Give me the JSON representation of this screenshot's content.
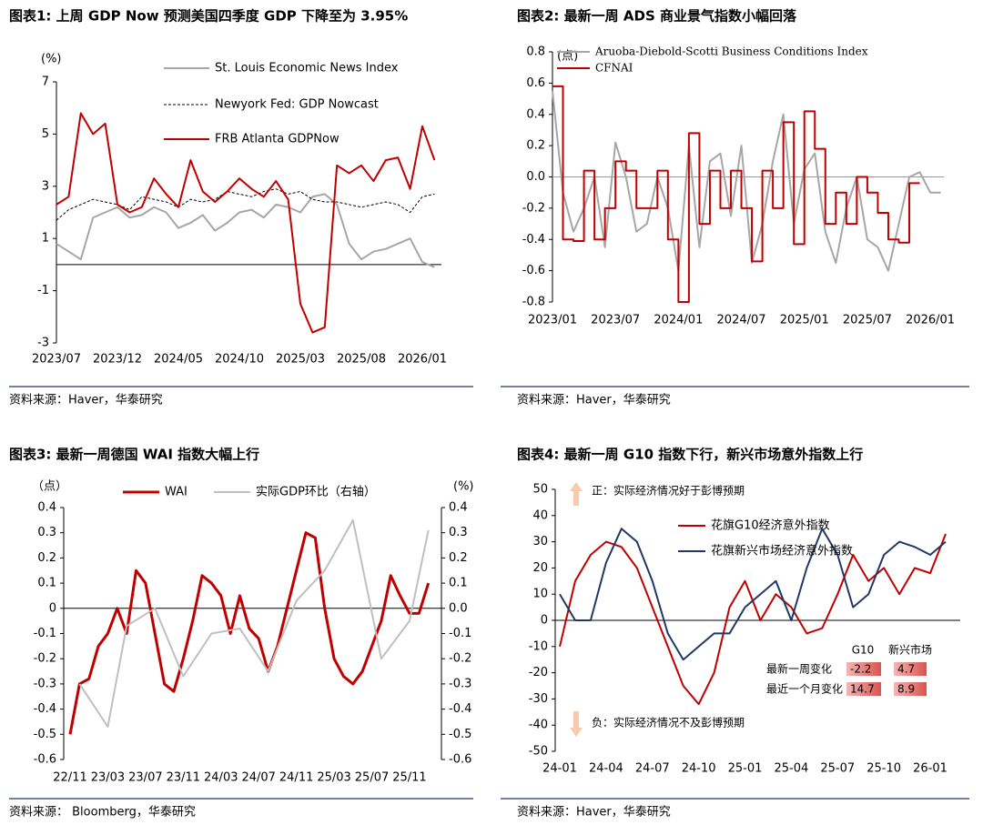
{
  "chart_data": [
    {
      "type": "line",
      "title": "图表1:  上周 GDP Now 预测美国四季度 GDP 下降至为 3.95%",
      "unit": "(%)",
      "source": "资料来源：Haver，华泰研究",
      "categories": [
        "2023/07",
        null,
        null,
        null,
        null,
        "2023/12",
        null,
        null,
        null,
        null,
        "2024/05",
        null,
        null,
        null,
        null,
        "2024/10",
        null,
        null,
        null,
        null,
        "2025/03",
        null,
        null,
        null,
        null,
        "2025/08",
        null,
        null,
        null,
        null,
        "2026/01",
        null
      ],
      "ylim": [
        -3,
        7
      ],
      "yticks": [
        -3,
        -1,
        1,
        3,
        5,
        7
      ],
      "series": [
        {
          "name": "St. Louis Economic News Index",
          "color": "#a6a6a6",
          "values": [
            0.8,
            0.5,
            0.2,
            1.8,
            2.0,
            2.2,
            1.8,
            1.9,
            2.2,
            2.0,
            1.4,
            1.6,
            1.9,
            1.3,
            1.6,
            2.0,
            2.1,
            1.8,
            2.3,
            2.2,
            2.0,
            2.6,
            2.7,
            2.3,
            0.8,
            0.2,
            0.5,
            0.6,
            0.8,
            1.0,
            0.1,
            -0.1
          ]
        },
        {
          "name": "Newyork Fed: GDP Nowcast",
          "color": "#000000",
          "dash": true,
          "values": [
            1.7,
            2.1,
            2.3,
            2.5,
            2.4,
            2.3,
            2.1,
            2.6,
            2.5,
            2.4,
            2.2,
            2.5,
            2.4,
            2.5,
            2.8,
            2.7,
            2.6,
            2.8,
            2.9,
            2.7,
            2.8,
            2.5,
            2.4,
            2.4,
            2.3,
            2.2,
            2.3,
            2.4,
            2.3,
            2.0,
            2.6,
            2.7
          ]
        },
        {
          "name": "FRB Atlanta GDPNow",
          "color": "#c00000",
          "values": [
            2.3,
            2.6,
            5.8,
            5.0,
            5.4,
            2.3,
            2.0,
            2.2,
            3.3,
            2.7,
            2.2,
            4.0,
            2.8,
            2.4,
            2.8,
            3.3,
            2.9,
            2.6,
            3.2,
            2.5,
            -1.5,
            -2.6,
            -2.4,
            3.8,
            3.5,
            3.8,
            3.2,
            4.0,
            4.1,
            2.9,
            5.3,
            4.0
          ]
        }
      ]
    },
    {
      "type": "line",
      "title": "图表2:  最新一周 ADS 商业景气指数小幅回落",
      "unit": "(点)",
      "source": "资料来源：Haver，华泰研究",
      "categories": [
        "2023/01",
        null,
        null,
        null,
        null,
        null,
        "2023/07",
        null,
        null,
        null,
        null,
        null,
        "2024/01",
        null,
        null,
        null,
        null,
        null,
        "2024/07",
        null,
        null,
        null,
        null,
        null,
        "2025/01",
        null,
        null,
        null,
        null,
        null,
        "2025/07",
        null,
        null,
        null,
        null,
        null,
        "2026/01",
        null
      ],
      "ylim": [
        -0.8,
        0.8
      ],
      "yticks": [
        -0.8,
        -0.6,
        -0.4,
        -0.2,
        {
          "value": 0,
          "label": "0.0"
        },
        0.2,
        0.4,
        0.6,
        0.8
      ],
      "series": [
        {
          "name": "Aruoba-Diebold-Scotti Business Conditions Index",
          "color": "#a6a6a6",
          "values": [
            0.55,
            -0.1,
            -0.35,
            -0.2,
            0.0,
            -0.45,
            0.22,
            0.0,
            -0.35,
            -0.3,
            0.0,
            -0.2,
            -0.6,
            0.2,
            -0.45,
            0.1,
            0.15,
            -0.25,
            0.2,
            -0.55,
            -0.3,
            0.1,
            0.4,
            -0.3,
            0.05,
            0.15,
            -0.35,
            -0.55,
            -0.2,
            0.0,
            -0.4,
            -0.45,
            -0.6,
            -0.3,
            0.0,
            0.03,
            -0.1,
            -0.1
          ]
        },
        {
          "name": "CFNAI",
          "color": "#c00000",
          "step": true,
          "values": [
            0.58,
            -0.4,
            -0.41,
            0.04,
            -0.4,
            -0.2,
            0.1,
            0.04,
            -0.2,
            -0.2,
            0.04,
            -0.4,
            -0.8,
            0.28,
            -0.3,
            0.04,
            -0.2,
            0.04,
            -0.2,
            -0.54,
            0.04,
            -0.2,
            0.35,
            -0.43,
            0.42,
            0.18,
            -0.3,
            -0.1,
            -0.3,
            0.0,
            -0.1,
            -0.23,
            -0.4,
            -0.42,
            -0.04,
            -0.04,
            null,
            null
          ]
        }
      ]
    },
    {
      "type": "line",
      "title": "图表3:  最新一周德国 WAI 指数大幅上行",
      "unit": "（点）",
      "unit2": "(%)",
      "source": "资料来源：  Bloomberg，华泰研究",
      "categories": [
        "22/11",
        null,
        null,
        null,
        "23/03",
        null,
        null,
        null,
        "23/07",
        null,
        null,
        null,
        "23/11",
        null,
        null,
        null,
        "24/03",
        null,
        null,
        null,
        "24/07",
        null,
        null,
        null,
        "24/11",
        null,
        null,
        null,
        "25/03",
        null,
        null,
        null,
        "25/07",
        null,
        null,
        null,
        "25/11",
        null,
        null
      ],
      "ylim": [
        -0.6,
        0.4
      ],
      "yticks": [
        -0.6,
        -0.5,
        -0.4,
        -0.3,
        -0.2,
        -0.1,
        0,
        0.1,
        0.2,
        0.3,
        0.4
      ],
      "y2lim": [
        -0.6,
        0.4
      ],
      "y2ticks": [
        -0.6,
        -0.5,
        -0.4,
        -0.3,
        -0.2,
        -0.1,
        {
          "value": 0,
          "label": "0.0"
        },
        0.1,
        0.2,
        0.3,
        0.4
      ],
      "series": [
        {
          "name": "WAI",
          "color": "#c00000",
          "width": 3,
          "values": [
            -0.5,
            -0.3,
            -0.28,
            -0.15,
            -0.1,
            0.0,
            -0.1,
            0.15,
            0.1,
            -0.1,
            -0.3,
            -0.33,
            -0.2,
            -0.05,
            0.13,
            0.1,
            0.05,
            -0.1,
            0.05,
            -0.08,
            -0.12,
            -0.25,
            -0.15,
            0.0,
            0.15,
            0.3,
            0.28,
            0.0,
            -0.2,
            -0.27,
            -0.3,
            -0.25,
            -0.15,
            -0.05,
            0.13,
            0.05,
            -0.02,
            -0.02,
            0.1
          ]
        },
        {
          "name": "实际GDP环比（右轴）",
          "color": "#bfbfbf",
          "axis": "y2",
          "x": [
            1,
            4,
            6,
            9,
            12,
            15,
            18,
            21,
            24,
            27,
            30,
            33,
            36,
            38
          ],
          "values": [
            -0.3,
            -0.47,
            -0.07,
            0.0,
            -0.27,
            -0.1,
            -0.08,
            -0.25,
            0.03,
            0.15,
            0.35,
            -0.2,
            -0.05,
            0.31
          ]
        }
      ]
    },
    {
      "type": "line",
      "title": "图表4:  最新一周 G10 指数下行，新兴市场意外指数上行",
      "source": "资料来源：Haver，华泰研究",
      "categories": [
        "24-01",
        null,
        null,
        "24-04",
        null,
        null,
        "24-07",
        null,
        null,
        "24-10",
        null,
        null,
        "25-01",
        null,
        null,
        "25-04",
        null,
        null,
        "25-07",
        null,
        null,
        "25-10",
        null,
        null,
        "26-01",
        null
      ],
      "ylim": [
        -50,
        50
      ],
      "yticks": [
        -50,
        -40,
        -30,
        -20,
        -10,
        0,
        10,
        20,
        30,
        40,
        50
      ],
      "series": [
        {
          "name": "花旗G10经济意外指数",
          "color": "#c00000",
          "values": [
            -10,
            15,
            25,
            30,
            28,
            20,
            5,
            -10,
            -25,
            -32,
            -20,
            5,
            15,
            0,
            10,
            5,
            -5,
            -3,
            10,
            25,
            15,
            20,
            10,
            20,
            18,
            33
          ]
        },
        {
          "name": "花旗新兴市场经济意外指数",
          "color": "#1f3864",
          "values": [
            10,
            0,
            0,
            22,
            35,
            30,
            15,
            -5,
            -15,
            -10,
            -5,
            -5,
            5,
            10,
            15,
            0,
            20,
            35,
            25,
            5,
            10,
            25,
            30,
            28,
            25,
            30
          ]
        }
      ],
      "annotations": {
        "positive": "正：实际经济情况好于彭博预期",
        "negative": "负：实际经济情况不及彭博预期",
        "table": {
          "columns": [
            "G10",
            "新兴市场"
          ],
          "rows": [
            {
              "label": "最新一周变化",
              "values": [
                -2.2,
                4.7
              ]
            },
            {
              "label": "最近一个月变化",
              "values": [
                14.7,
                8.9
              ]
            }
          ]
        }
      }
    }
  ]
}
